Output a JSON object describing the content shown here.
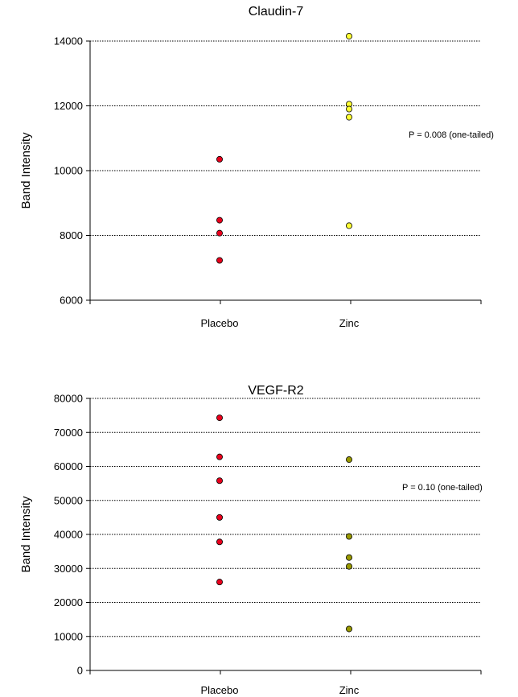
{
  "chart_data": [
    {
      "type": "scatter",
      "title": "Claudin-7",
      "xlabel": "",
      "ylabel": "Band Intensity",
      "categories": [
        "Placebo",
        "Zinc"
      ],
      "ylim": [
        6000,
        14000
      ],
      "yticks": [
        6000,
        8000,
        10000,
        12000,
        14000
      ],
      "grid": true,
      "annotation": "P = 0.008 (one-tailed)",
      "series": [
        {
          "category": "Placebo",
          "color": "#e8001c",
          "values": [
            10350,
            8470,
            8070,
            7230
          ]
        },
        {
          "category": "Zinc",
          "color": "#ffff33",
          "values": [
            14150,
            12050,
            11900,
            11650,
            8300
          ]
        }
      ]
    },
    {
      "type": "scatter",
      "title": "VEGF-R2",
      "xlabel": "",
      "ylabel": "Band Intensity",
      "categories": [
        "Placebo",
        "Zinc"
      ],
      "ylim": [
        0,
        80000
      ],
      "yticks": [
        0,
        10000,
        20000,
        30000,
        40000,
        50000,
        60000,
        70000,
        80000
      ],
      "grid": true,
      "annotation": "P = 0.10  (one-tailed)",
      "series": [
        {
          "category": "Placebo",
          "color": "#e8001c",
          "values": [
            74300,
            62800,
            55800,
            45000,
            37800,
            26000
          ]
        },
        {
          "category": "Zinc",
          "color": "#999900",
          "values": [
            62000,
            39400,
            33200,
            30600,
            12200
          ]
        }
      ]
    }
  ]
}
